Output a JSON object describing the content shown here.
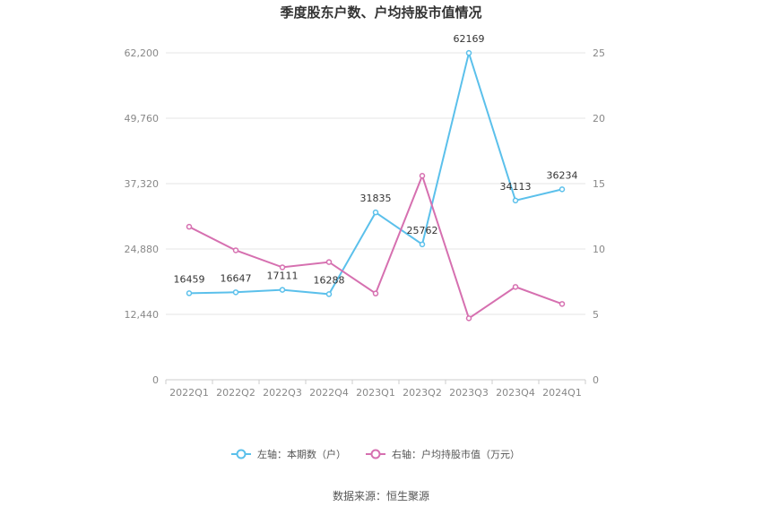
{
  "chart_data": {
    "type": "line",
    "title": "季度股东户数、户均持股市值情况",
    "categories": [
      "2022Q1",
      "2022Q2",
      "2022Q3",
      "2022Q4",
      "2023Q1",
      "2023Q2",
      "2023Q3",
      "2023Q4",
      "2024Q1"
    ],
    "left_axis": {
      "ticks": [
        "0",
        "12,440",
        "24,880",
        "37,320",
        "49,760",
        "62,200"
      ],
      "ylim": [
        0,
        62200
      ]
    },
    "right_axis": {
      "ticks": [
        "0",
        "5",
        "10",
        "15",
        "20",
        "25"
      ],
      "ylim": [
        0,
        25
      ]
    },
    "series": [
      {
        "name": "左轴：本期数（户）",
        "axis": "left",
        "color": "#5bc0eb",
        "values": [
          16459,
          16647,
          17111,
          16288,
          31835,
          25762,
          62169,
          34113,
          36234
        ],
        "labels": [
          "16459",
          "16647",
          "17111",
          "16288",
          "31835",
          "25762",
          "62169",
          "34113",
          "36234"
        ]
      },
      {
        "name": "右轴：户均持股市值（万元）",
        "axis": "right",
        "color": "#d670b0",
        "values": [
          11.7,
          9.9,
          8.6,
          9.0,
          6.6,
          15.6,
          4.7,
          7.1,
          5.8
        ]
      }
    ],
    "grid": true,
    "legend_position": "bottom"
  },
  "source_text": "数据来源：恒生聚源"
}
